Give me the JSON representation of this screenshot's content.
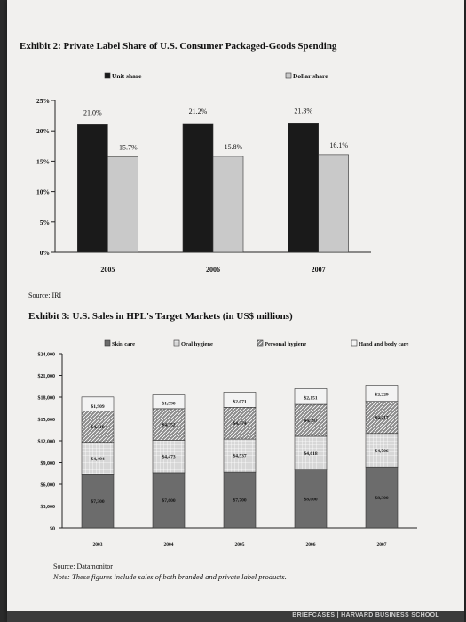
{
  "exhibit2": {
    "title": "Exhibit 2: Private Label Share of U.S. Consumer Packaged-Goods Spending",
    "source": "Source: IRI"
  },
  "exhibit3": {
    "title": "Exhibit 3: U.S. Sales in HPL's Target Markets (in US$ millions)",
    "source": "Source: Datamonitor",
    "note": "Note: These figures include sales of both branded and private label products."
  },
  "footer": {
    "text": "BRIEFCASES | HARVARD BUSINESS SCHOOL"
  },
  "colors": {
    "unit": "#1a1a1a",
    "dollar": "#c9c9c9",
    "skin": "#6c6c6c",
    "oral": "#d7d7d7",
    "personal": "#8c8c8c",
    "hand": "#f3f3f3"
  },
  "chart_data": [
    {
      "type": "bar",
      "categories": [
        "2005",
        "2006",
        "2007"
      ],
      "series": [
        {
          "name": "Unit share",
          "values": [
            21.0,
            21.2,
            21.3
          ],
          "labels": [
            "21.0%",
            "21.2%",
            "21.3%"
          ]
        },
        {
          "name": "Dollar share",
          "values": [
            15.7,
            15.8,
            16.1
          ],
          "labels": [
            "15.7%",
            "15.8%",
            "16.1%"
          ]
        }
      ],
      "yticks": [
        "0%",
        "5%",
        "10%",
        "15%",
        "20%",
        "25%"
      ],
      "ylim": [
        0,
        25
      ],
      "legend": "top"
    },
    {
      "type": "stacked-bar",
      "categories": [
        "2003",
        "2004",
        "2005",
        "2006",
        "2007"
      ],
      "series": [
        {
          "name": "Skin care",
          "values": [
            7300,
            7600,
            7700,
            8000,
            8300
          ],
          "labels": [
            "$7,300",
            "$7,600",
            "$7,700",
            "$8,000",
            "$8,300"
          ]
        },
        {
          "name": "Oral hygiene",
          "values": [
            4494,
            4473,
            4537,
            4618,
            4706
          ],
          "labels": [
            "$4,494",
            "$4,473",
            "$4,537",
            "$4,618",
            "$4,706"
          ]
        },
        {
          "name": "Personal hygiene",
          "values": [
            4318,
            4352,
            4374,
            4397,
            4417
          ],
          "labels": [
            "$4,318",
            "$4,352",
            "$4,374",
            "$4,397",
            "$4,417"
          ]
        },
        {
          "name": "Hand and body care",
          "values": [
            1909,
            1990,
            2071,
            2151,
            2229
          ],
          "labels": [
            "$1,909",
            "$1,990",
            "$2,071",
            "$2,151",
            "$2,229"
          ]
        }
      ],
      "yticks": [
        "$0",
        "$3,000",
        "$6,000",
        "$9,000",
        "$12,000",
        "$15,000",
        "$18,000",
        "$21,000",
        "$24,000"
      ],
      "ylim": [
        0,
        24000
      ],
      "legend": "top"
    }
  ]
}
